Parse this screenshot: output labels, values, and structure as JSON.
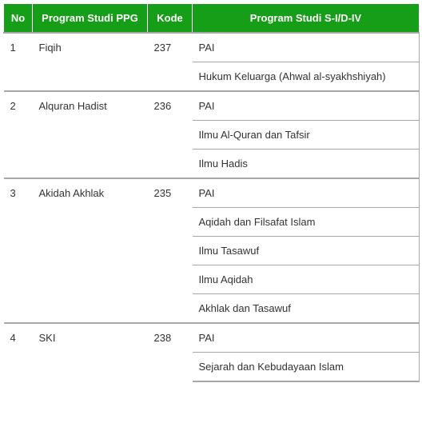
{
  "table": {
    "header_bg": "#179e18",
    "header_border": "#ffffff",
    "header_text_color": "#ffffff",
    "body_border": "#a7a7a7",
    "columns": [
      {
        "key": "no",
        "label": "No"
      },
      {
        "key": "ppg",
        "label": "Program Studi PPG"
      },
      {
        "key": "kode",
        "label": "Kode"
      },
      {
        "key": "s1",
        "label": "Program Studi S-I/D-IV"
      }
    ],
    "rows": [
      {
        "no": "1",
        "ppg": "Fiqih",
        "kode": "237",
        "s1": [
          "PAI",
          "Hukum Keluarga (Ahwal al-syakhshiyah)"
        ]
      },
      {
        "no": "2",
        "ppg": "Alquran Hadist",
        "kode": "236",
        "s1": [
          "PAI",
          "Ilmu Al-Quran dan Tafsir",
          "Ilmu Hadis"
        ]
      },
      {
        "no": "3",
        "ppg": "Akidah Akhlak",
        "kode": "235",
        "s1": [
          "PAI",
          "Aqidah dan Filsafat Islam",
          "Ilmu Tasawuf",
          "Ilmu Aqidah",
          "Akhlak dan Tasawuf"
        ]
      },
      {
        "no": "4",
        "ppg": "SKI",
        "kode": "238",
        "s1": [
          "PAI",
          "Sejarah dan Kebudayaan Islam"
        ]
      }
    ]
  }
}
